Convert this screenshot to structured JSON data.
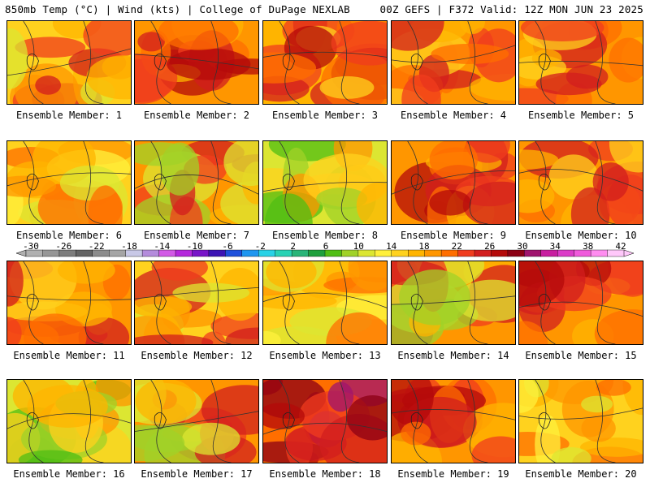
{
  "header": {
    "left": "850mb Temp (°C) | Wind (kts) | College of DuPage NEXLAB",
    "right": "00Z GEFS | F372 Valid: 12Z MON JUN 23 2025"
  },
  "colorbar": {
    "tick_labels": [
      "-30",
      "-26",
      "-22",
      "-18",
      "-14",
      "-10",
      "-6",
      "-2",
      "2",
      "6",
      "10",
      "14",
      "18",
      "22",
      "26",
      "30",
      "34",
      "38",
      "42"
    ],
    "colors": [
      "#b0b0b0",
      "#969696",
      "#7d7d7d",
      "#646464",
      "#8c8c8c",
      "#a5a5a5",
      "#c8c8e6",
      "#b48cdc",
      "#d25ae6",
      "#b428dc",
      "#7814c8",
      "#3c14b4",
      "#1e50dc",
      "#1e96f0",
      "#28d2e6",
      "#28d2b4",
      "#28b478",
      "#1ea03c",
      "#50be14",
      "#a0d228",
      "#dce632",
      "#fff03c",
      "#ffd21e",
      "#ffb400",
      "#ff9600",
      "#ff6e00",
      "#f03c1e",
      "#d21e1e",
      "#b40a0a",
      "#8c0014",
      "#a0146e",
      "#c81ea0",
      "#dc3cc8",
      "#f05adc",
      "#ff8cf0",
      "#ffc8fa"
    ]
  },
  "panels": [
    {
      "label": "Ensemble Member: 1",
      "scheme": "west-hot"
    },
    {
      "label": "Ensemble Member: 2",
      "scheme": "center-hot"
    },
    {
      "label": "Ensemble Member: 3",
      "scheme": "north-hot"
    },
    {
      "label": "Ensemble Member: 4",
      "scheme": "warm"
    },
    {
      "label": "Ensemble Member: 5",
      "scheme": "warm"
    },
    {
      "label": "Ensemble Member: 6",
      "scheme": "mild"
    },
    {
      "label": "Ensemble Member: 7",
      "scheme": "east-cool"
    },
    {
      "label": "Ensemble Member: 8",
      "scheme": "mild-green"
    },
    {
      "label": "Ensemble Member: 9",
      "scheme": "center-hot"
    },
    {
      "label": "Ensemble Member: 10",
      "scheme": "warm"
    },
    {
      "label": "Ensemble Member: 11",
      "scheme": "warm"
    },
    {
      "label": "Ensemble Member: 12",
      "scheme": "west-hot"
    },
    {
      "label": "Ensemble Member: 13",
      "scheme": "mild"
    },
    {
      "label": "Ensemble Member: 14",
      "scheme": "east-cool"
    },
    {
      "label": "Ensemble Member: 15",
      "scheme": "center-hot"
    },
    {
      "label": "Ensemble Member: 16",
      "scheme": "mild-green"
    },
    {
      "label": "Ensemble Member: 17",
      "scheme": "east-cool"
    },
    {
      "label": "Ensemble Member: 18",
      "scheme": "extreme"
    },
    {
      "label": "Ensemble Member: 19",
      "scheme": "center-hot"
    },
    {
      "label": "Ensemble Member: 20",
      "scheme": "mild"
    }
  ]
}
